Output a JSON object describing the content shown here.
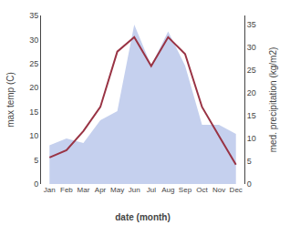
{
  "chart_data": {
    "type": "line",
    "categories": [
      "Jan",
      "Feb",
      "Mar",
      "Apr",
      "May",
      "Jun",
      "Jul",
      "Aug",
      "Sep",
      "Oct",
      "Nov",
      "Dec"
    ],
    "series": [
      {
        "type": "area",
        "color": "#c5d0ee",
        "axis": "y2",
        "values": [
          8.5,
          10.0,
          9.0,
          14.0,
          16.0,
          35.0,
          26.0,
          33.5,
          26.0,
          13.0,
          13.0,
          11.0
        ]
      },
      {
        "type": "line",
        "color": "#993344",
        "values": [
          5.5,
          7.0,
          11.0,
          16.0,
          27.5,
          30.5,
          24.5,
          30.5,
          27.0,
          16.0,
          10.0,
          4.0
        ]
      }
    ],
    "xlabel": "date (month)",
    "ylabel": "max temp (C)",
    "y2label": "med. precipitation (kg/m2)",
    "ylim": [
      0,
      35
    ],
    "yticks": [
      0,
      5,
      10,
      15,
      20,
      25,
      30,
      35
    ],
    "y2lim": [
      0,
      37
    ],
    "y2ticks": [
      0,
      5,
      10,
      15,
      20,
      25,
      30,
      35
    ],
    "grid": false
  }
}
